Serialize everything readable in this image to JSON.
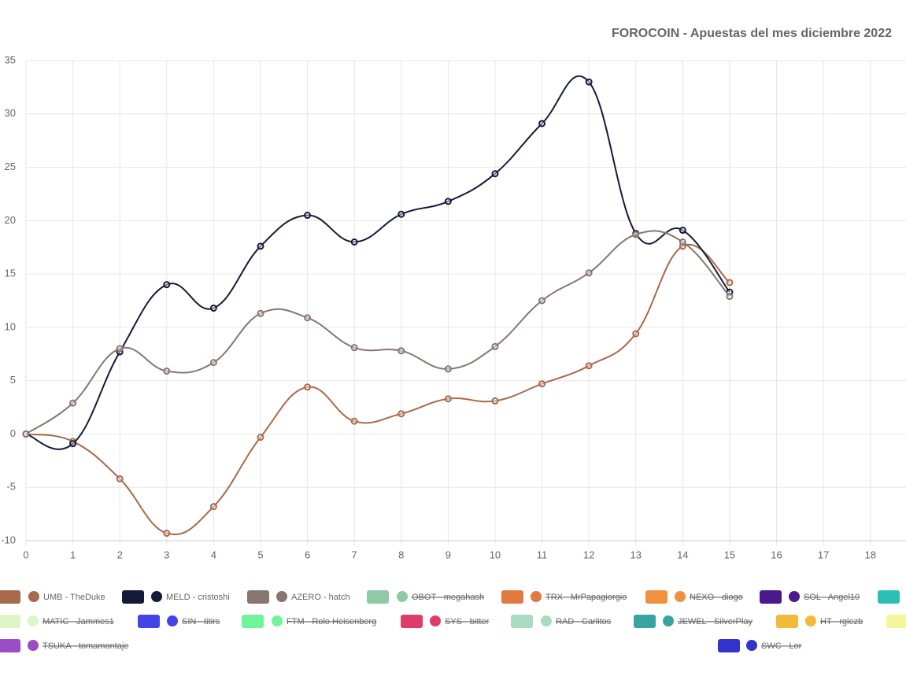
{
  "chart_data": {
    "type": "line",
    "title": "FOROCOIN - Apuestas del mes diciembre 2022",
    "x": [
      0,
      1,
      2,
      3,
      4,
      5,
      6,
      7,
      8,
      9,
      10,
      11,
      12,
      13,
      14,
      15
    ],
    "xlim": [
      0,
      18.76
    ],
    "xticks": [
      0,
      1,
      2,
      3,
      4,
      5,
      6,
      7,
      8,
      9,
      10,
      11,
      12,
      13,
      14,
      15,
      16,
      17,
      18
    ],
    "ylim": [
      -10,
      35
    ],
    "yticks": [
      -10,
      -5,
      0,
      5,
      10,
      15,
      20,
      25,
      30,
      35
    ],
    "grid": true,
    "series": [
      {
        "name": "UMB - TheDuke",
        "color": "#a86a4c",
        "values": [
          0,
          -0.7,
          -4.2,
          -9.3,
          -6.8,
          -0.3,
          4.4,
          1.2,
          1.9,
          3.3,
          3.1,
          4.7,
          6.4,
          9.4,
          17.6,
          14.2
        ]
      },
      {
        "name": "MELD - cristoshi",
        "color": "#161a3a",
        "values": [
          0,
          -0.9,
          7.7,
          14.0,
          11.8,
          17.6,
          20.5,
          18.0,
          20.6,
          21.8,
          24.4,
          29.1,
          33.0,
          18.8,
          19.1,
          13.3
        ]
      },
      {
        "name": "AZERO - hatch",
        "color": "#87756f",
        "values": [
          0,
          2.9,
          8.0,
          5.9,
          6.7,
          11.3,
          10.9,
          8.1,
          7.8,
          6.1,
          8.2,
          12.5,
          15.1,
          18.7,
          18.0,
          12.9
        ]
      }
    ],
    "hidden_series": [
      {
        "name": "OBOT - megahash",
        "color": "#8fc9a8"
      },
      {
        "name": "TRX - MrPapagiorgio",
        "color": "#e07a3f"
      },
      {
        "name": "NEXO - diogo",
        "color": "#f0913f"
      },
      {
        "name": "SOL - Angel10",
        "color": "#4a1a8c"
      },
      {
        "name": "MATIC - Jammes1",
        "color": "#dff5c7"
      },
      {
        "name": "SIN - titirs",
        "color": "#4444e6"
      },
      {
        "name": "FTM - Rolo Heisenberg",
        "color": "#6ef59a"
      },
      {
        "name": "SYS - bitter",
        "color": "#de3d6a"
      },
      {
        "name": "RAD - Carlitos",
        "color": "#a8dcc0"
      },
      {
        "name": "JEWEL - SilverPlay",
        "color": "#38a3a0"
      },
      {
        "name": "HT - rglezb",
        "color": "#f2b93b"
      },
      {
        "name": "TSUKA - tomamontaje",
        "color": "#9a4dc4"
      },
      {
        "name": "SWC - Lor",
        "color": "#3333cc"
      }
    ]
  }
}
